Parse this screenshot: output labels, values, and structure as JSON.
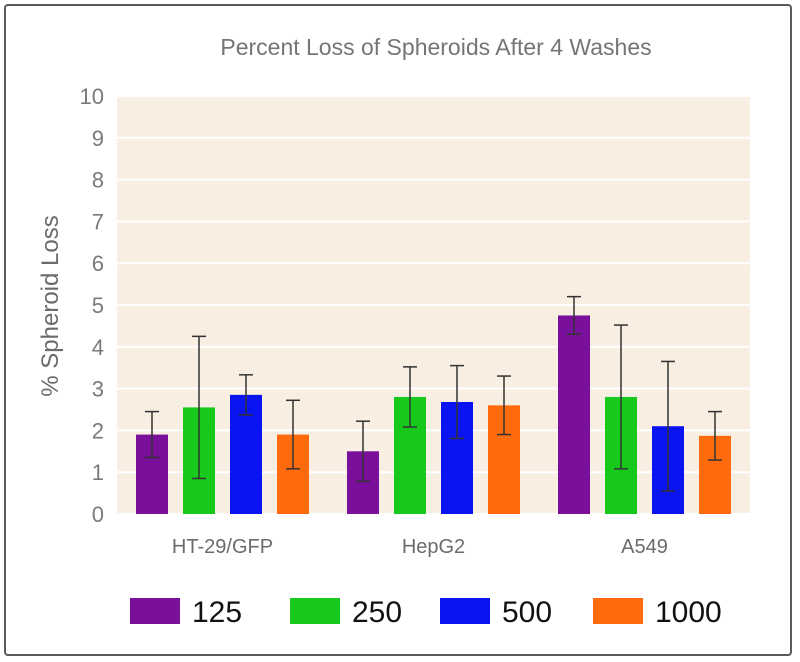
{
  "chart_data": {
    "type": "bar",
    "title": "Percent Loss of Spheroids After 4 Washes",
    "xlabel": "",
    "ylabel": "% Spheroid Loss",
    "ylim": [
      0,
      10
    ],
    "yticks": [
      "0",
      "1",
      "2",
      "3",
      "4",
      "5",
      "6",
      "7",
      "8",
      "9",
      "10"
    ],
    "grid": true,
    "legend_position": "bottom",
    "categories": [
      "HT-29/GFP",
      "HepG2",
      "A549"
    ],
    "series": [
      {
        "name": "125",
        "color": "#7a0f9c",
        "values": [
          1.9,
          1.5,
          4.75
        ],
        "error": [
          0.55,
          0.72,
          0.45
        ]
      },
      {
        "name": "250",
        "color": "#16c91a",
        "values": [
          2.55,
          2.8,
          2.8
        ],
        "error": [
          1.7,
          0.72,
          1.72
        ]
      },
      {
        "name": "500",
        "color": "#0a14f0",
        "values": [
          2.85,
          2.68,
          2.1
        ],
        "error": [
          0.48,
          0.87,
          1.55
        ]
      },
      {
        "name": "1000",
        "color": "#ff6a0d",
        "values": [
          1.9,
          2.6,
          1.87
        ],
        "error": [
          0.82,
          0.7,
          0.58
        ]
      }
    ],
    "plot_background": "#f8eee2"
  }
}
